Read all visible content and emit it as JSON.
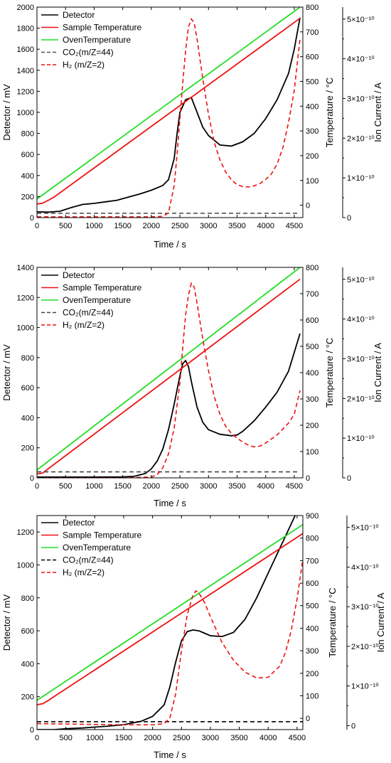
{
  "chart_data": [
    {
      "type": "line",
      "xlabel": "Time  /  s",
      "ylabel_left": "Detector  /  mV",
      "ylabel_right1": "Temperature  /  °C",
      "ylabel_right2": "Ion Current / A",
      "xlim": [
        0,
        4650
      ],
      "ylim_left": [
        0,
        2000
      ],
      "ylim_right1": [
        -50,
        800
      ],
      "ylim_right2": [
        0,
        5.3e-10
      ],
      "x_ticks": [
        0,
        500,
        1000,
        1500,
        2000,
        2500,
        3000,
        3500,
        4000,
        4500
      ],
      "yl_ticks": [
        0,
        200,
        400,
        600,
        800,
        1000,
        1200,
        1400,
        1600,
        1800,
        2000
      ],
      "yr1_ticks": [
        0,
        100,
        200,
        300,
        400,
        500,
        600,
        700,
        800
      ],
      "yr2_ticks": [
        0,
        1e-10,
        2e-10,
        3e-10,
        4e-10,
        5e-10
      ],
      "yr2_tick_labels": [
        "0",
        "1×10⁻¹⁰",
        "2×10⁻¹⁰",
        "3×10⁻¹⁰",
        "4×10⁻¹⁰",
        "5×10⁻¹⁰"
      ],
      "legend": [
        "Detector",
        "Sample Temperature",
        "OvenTemperature",
        "CO₂(m/Z=44)",
        "H₂ (m/Z=2)"
      ],
      "series": [
        {
          "name": "Detector",
          "axis": "left",
          "color": "#000000",
          "dash": "solid",
          "x": [
            0,
            200,
            400,
            600,
            800,
            1000,
            1200,
            1400,
            1600,
            1800,
            2000,
            2200,
            2300,
            2400,
            2450,
            2500,
            2600,
            2700,
            2800,
            2900,
            3000,
            3200,
            3400,
            3600,
            3800,
            4000,
            4200,
            4400,
            4500,
            4600
          ],
          "y": [
            55,
            52,
            60,
            95,
            125,
            135,
            150,
            165,
            195,
            225,
            260,
            305,
            360,
            560,
            800,
            1000,
            1120,
            1140,
            1000,
            860,
            780,
            690,
            680,
            720,
            800,
            940,
            1120,
            1370,
            1600,
            1900
          ]
        },
        {
          "name": "Sample Temperature",
          "axis": "right1",
          "color": "#ee1111",
          "dash": "solid",
          "x": [
            0,
            100,
            200,
            300,
            4600
          ],
          "y": [
            5,
            8,
            20,
            33,
            755
          ]
        },
        {
          "name": "OvenTemperature",
          "axis": "right1",
          "color": "#22dd22",
          "dash": "solid",
          "x": [
            0,
            4600
          ],
          "y": [
            25,
            800
          ]
        },
        {
          "name": "CO₂(m/Z=44)",
          "axis": "right2",
          "color": "#555555",
          "dash": "dashed",
          "x": [
            0,
            4600
          ],
          "y": [
            1.1e-11,
            1.1e-11
          ]
        },
        {
          "name": "H₂ (m/Z=2)",
          "axis": "right2",
          "color": "#ee1111",
          "dash": "dashed",
          "x": [
            0,
            500,
            1000,
            1500,
            2000,
            2200,
            2300,
            2400,
            2450,
            2500,
            2550,
            2600,
            2650,
            2700,
            2750,
            2800,
            2900,
            3000,
            3100,
            3200,
            3300,
            3400,
            3500,
            3600,
            3700,
            3800,
            3900,
            4000,
            4100,
            4200,
            4300,
            4400,
            4500,
            4600
          ],
          "y": [
            2e-12,
            2e-12,
            2e-12,
            2e-12,
            2e-12,
            3e-12,
            1.2e-11,
            8e-11,
            1.6e-10,
            2.5e-10,
            3.4e-10,
            4.2e-10,
            4.8e-10,
            5e-10,
            4.9e-10,
            4.5e-10,
            3.5e-10,
            2.6e-10,
            1.9e-10,
            1.45e-10,
            1.15e-10,
            9.5e-11,
            8.3e-11,
            7.8e-11,
            7.7e-11,
            8e-11,
            8.6e-11,
            9.6e-11,
            1.1e-10,
            1.35e-10,
            1.75e-10,
            2.4e-10,
            3.2e-10,
            4.5e-10
          ]
        }
      ]
    },
    {
      "type": "line",
      "xlabel": "Time  /  s",
      "ylabel_left": "Detector  /  mV",
      "ylabel_right1": "Temperature  /  °C",
      "ylabel_right2": "Ion Current / A",
      "xlim": [
        0,
        4650
      ],
      "ylim_left": [
        0,
        1400
      ],
      "ylim_right1": [
        0,
        800
      ],
      "ylim_right2": [
        0,
        5.3e-10
      ],
      "x_ticks": [
        0,
        500,
        1000,
        1500,
        2000,
        2500,
        3000,
        3500,
        4000,
        4500
      ],
      "yl_ticks": [
        0,
        200,
        400,
        600,
        800,
        1000,
        1200,
        1400
      ],
      "yr1_ticks": [
        0,
        100,
        200,
        300,
        400,
        500,
        600,
        700,
        800
      ],
      "yr2_ticks": [
        0,
        1e-10,
        2e-10,
        3e-10,
        4e-10,
        5e-10
      ],
      "yr2_tick_labels": [
        "0",
        "1×10⁻¹⁰",
        "2×10⁻¹⁰",
        "3×10⁻¹⁰",
        "4×10⁻¹⁰",
        "5×10⁻¹⁰"
      ],
      "legend": [
        "Detector",
        "Sample Temperature",
        "OvenTemperature",
        "CO₂(m/Z=44)",
        "H₂ (m/Z=2)"
      ],
      "series": [
        {
          "name": "Detector",
          "axis": "left",
          "color": "#000000",
          "dash": "solid",
          "x": [
            0,
            500,
            1000,
            1500,
            1700,
            1800,
            1900,
            2000,
            2100,
            2200,
            2300,
            2400,
            2500,
            2550,
            2600,
            2650,
            2700,
            2800,
            2900,
            3000,
            3200,
            3400,
            3500,
            3600,
            3800,
            4000,
            4200,
            4400,
            4600
          ],
          "y": [
            5,
            5,
            5,
            6,
            10,
            20,
            30,
            60,
            110,
            190,
            320,
            490,
            680,
            760,
            780,
            740,
            640,
            470,
            370,
            320,
            290,
            280,
            285,
            310,
            380,
            470,
            570,
            710,
            960
          ]
        },
        {
          "name": "Sample Temperature",
          "axis": "right1",
          "color": "#ee1111",
          "dash": "solid",
          "x": [
            0,
            100,
            200,
            4600
          ],
          "y": [
            15,
            18,
            35,
            755
          ]
        },
        {
          "name": "OvenTemperature",
          "axis": "right1",
          "color": "#22dd22",
          "dash": "solid",
          "x": [
            0,
            4600
          ],
          "y": [
            30,
            800
          ]
        },
        {
          "name": "CO₂(m/Z=44)",
          "axis": "right2",
          "color": "#444444",
          "dash": "dashed",
          "x": [
            0,
            4600
          ],
          "y": [
            1.5e-11,
            1.5e-11
          ]
        },
        {
          "name": "H₂ (m/Z=2)",
          "axis": "right2",
          "color": "#ee1111",
          "dash": "dashed",
          "x": [
            0,
            1500,
            2000,
            2100,
            2200,
            2300,
            2400,
            2500,
            2550,
            2600,
            2650,
            2700,
            2750,
            2800,
            2900,
            3000,
            3100,
            3200,
            3300,
            3400,
            3500,
            3600,
            3700,
            3800,
            3900,
            4000,
            4200,
            4400,
            4500,
            4600
          ],
          "y": [
            0,
            0,
            2e-12,
            8e-12,
            2.5e-11,
            6e-11,
            1.25e-10,
            2.4e-10,
            3.3e-10,
            4.1e-10,
            4.6e-10,
            4.9e-10,
            4.8e-10,
            4.4e-10,
            3.5e-10,
            2.7e-10,
            2.05e-10,
            1.6e-10,
            1.3e-10,
            1.12e-10,
            1e-10,
            9e-11,
            8.2e-11,
            7.8e-11,
            8e-11,
            8.8e-11,
            1.08e-10,
            1.38e-10,
            1.6e-10,
            2.2e-10
          ]
        }
      ]
    },
    {
      "type": "line",
      "xlabel": "Time  /  s",
      "ylabel_left": "Detector  /  mV",
      "ylabel_right1": "Temperature  /  °C",
      "ylabel_right2": "Ion Current / A",
      "xlim": [
        0,
        4600
      ],
      "ylim_left": [
        0,
        1300
      ],
      "ylim_right1": [
        -50,
        900
      ],
      "ylim_right2": [
        -1e-11,
        5.3e-10
      ],
      "x_ticks": [
        0,
        500,
        1000,
        1500,
        2000,
        2500,
        3000,
        3500,
        4000,
        4500
      ],
      "yl_ticks": [
        0,
        200,
        400,
        600,
        800,
        1000,
        1200
      ],
      "yr1_ticks": [
        0,
        100,
        200,
        300,
        400,
        500,
        600,
        700,
        800,
        900
      ],
      "yr2_ticks": [
        0,
        1e-10,
        2e-10,
        3e-10,
        4e-10,
        5e-10
      ],
      "yr2_tick_labels": [
        "0",
        "1×10⁻¹⁰",
        "2×10⁻¹⁰",
        "3×10⁻¹⁰",
        "4×10⁻¹⁰",
        "5×10⁻¹⁰"
      ],
      "legend": [
        "Detector",
        "Sample Temperature",
        "OvenTemperature",
        "CO₂(m/Z=44)",
        "H₂ (m/Z=2)"
      ],
      "series": [
        {
          "name": "Detector",
          "axis": "left",
          "color": "#000000",
          "dash": "solid",
          "x": [
            0,
            300,
            500,
            800,
            1000,
            1200,
            1500,
            1800,
            2000,
            2200,
            2300,
            2400,
            2500,
            2600,
            2700,
            2800,
            2900,
            3000,
            3200,
            3400,
            3600,
            3800,
            4000,
            4200,
            4400,
            4600
          ],
          "y": [
            0,
            0,
            5,
            10,
            15,
            20,
            30,
            50,
            80,
            150,
            260,
            410,
            540,
            595,
            605,
            600,
            585,
            570,
            565,
            590,
            670,
            800,
            950,
            1100,
            1250,
            1400
          ]
        },
        {
          "name": "Sample Temperature",
          "axis": "right1",
          "color": "#ee1111",
          "dash": "solid",
          "x": [
            0,
            100,
            200,
            300,
            4600
          ],
          "y": [
            60,
            65,
            80,
            97,
            820
          ]
        },
        {
          "name": "OvenTemperature",
          "axis": "right1",
          "color": "#22dd22",
          "dash": "solid",
          "x": [
            0,
            4600
          ],
          "y": [
            80,
            860
          ]
        },
        {
          "name": "CO₂(m/Z=44)",
          "axis": "right2",
          "color": "#000000",
          "dash": "dashed",
          "x": [
            0,
            4600
          ],
          "y": [
            1e-11,
            1e-11
          ]
        },
        {
          "name": "H₂ (m/Z=2)",
          "axis": "right2",
          "color": "#ee1111",
          "dash": "dashed",
          "x": [
            0,
            500,
            1000,
            1500,
            1800,
            2000,
            2200,
            2300,
            2400,
            2500,
            2600,
            2700,
            2750,
            2800,
            2900,
            3000,
            3200,
            3400,
            3600,
            3800,
            4000,
            4200,
            4300,
            4400,
            4500,
            4600
          ],
          "y": [
            5e-12,
            4e-12,
            3e-12,
            2e-12,
            2e-12,
            2e-12,
            5e-12,
            2e-11,
            8e-11,
            1.9e-10,
            2.8e-10,
            3.3e-10,
            3.4e-10,
            3.35e-10,
            3.1e-10,
            2.75e-10,
            2.1e-10,
            1.65e-10,
            1.35e-10,
            1.2e-10,
            1.22e-10,
            1.5e-10,
            1.85e-10,
            2.4e-10,
            3.2e-10,
            4.2e-10
          ]
        }
      ]
    }
  ]
}
